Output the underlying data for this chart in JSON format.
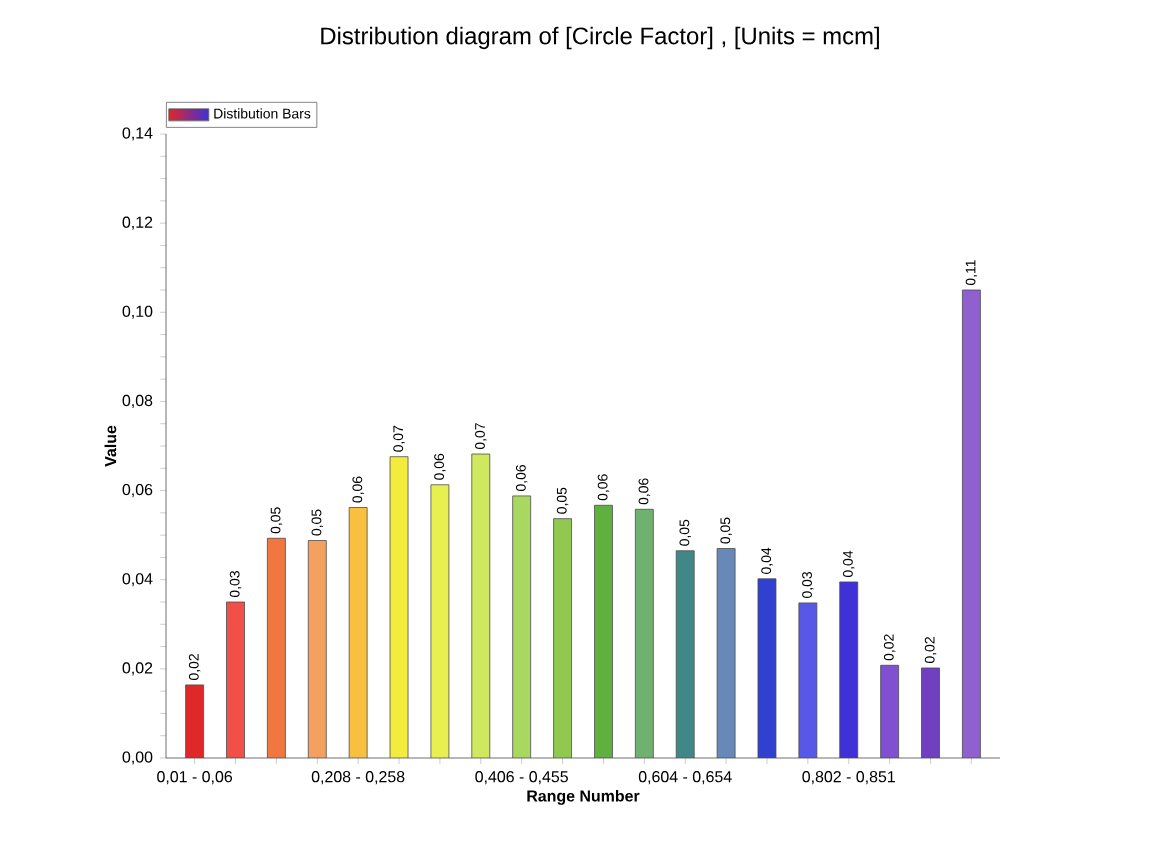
{
  "chart_data": {
    "type": "bar",
    "title": "Distribution diagram of [Circle Factor] , [Units = mcm]",
    "xlabel": "Range Number",
    "ylabel": "Value",
    "categories": [
      "0,01 - 0,06",
      null,
      null,
      null,
      "0,208 - 0,258",
      null,
      null,
      null,
      "0,406 - 0,455",
      null,
      null,
      null,
      "0,604 - 0,654",
      null,
      null,
      null,
      "0,802 - 0,851",
      null,
      null,
      null
    ],
    "series": [
      {
        "name": "Distibution Bars",
        "values": [
          0.0164,
          0.035,
          0.0493,
          0.0488,
          0.0562,
          0.0676,
          0.0613,
          0.0682,
          0.0588,
          0.0537,
          0.0567,
          0.0558,
          0.0465,
          0.047,
          0.0402,
          0.0348,
          0.0395,
          0.0208,
          0.0202,
          0.105
        ],
        "colors": [
          "#e02828",
          "#f05048",
          "#f07840",
          "#f4a060",
          "#f8c040",
          "#f4ec3c",
          "#e8f050",
          "#d0e860",
          "#a8d860",
          "#90c850",
          "#60b040",
          "#70b070",
          "#408888",
          "#6888b8",
          "#3040d0",
          "#5858e8",
          "#4030d8",
          "#8050d0",
          "#7040c0",
          "#9060d0"
        ],
        "value_labels": [
          "0,02",
          "0,03",
          "0,05",
          "0,05",
          "0,06",
          "0,07",
          "0,06",
          "0,07",
          "0,06",
          "0,05",
          "0,06",
          "0,06",
          "0,05",
          "0,05",
          "0,04",
          "0,03",
          "0,04",
          "0,02",
          "0,02",
          "0,11"
        ]
      }
    ],
    "ylim": [
      0,
      0.14
    ],
    "yticks": [
      {
        "value": 0,
        "label": "0,00"
      },
      {
        "value": 0.02,
        "label": "0,02"
      },
      {
        "value": 0.04,
        "label": "0,04"
      },
      {
        "value": 0.06,
        "label": "0,06"
      },
      {
        "value": 0.08,
        "label": "0,08"
      },
      {
        "value": 0.1,
        "label": "0,10"
      },
      {
        "value": 0.12,
        "label": "0,12"
      },
      {
        "value": 0.14,
        "label": "0,14"
      }
    ],
    "grid": false,
    "legend": "top left"
  }
}
